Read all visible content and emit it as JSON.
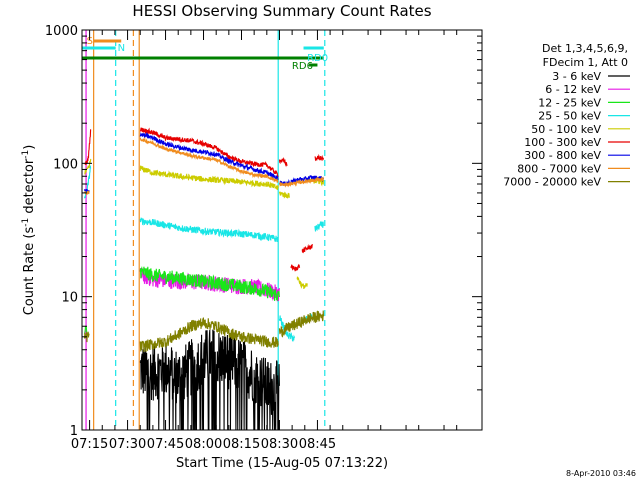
{
  "chart_data": {
    "type": "line",
    "title": "HESSI Observing Summary Count Rates",
    "xlabel": "Start Time (15-Aug-05 07:13:22)",
    "ylabel": "Count Rate (s",
    "ylabel_sup": "-1",
    "ylabel_tail": " detector",
    "ylabel_sup2": "-1",
    "ylabel_end": ")",
    "yscale": "log",
    "xlim_min": [
      432,
      590
    ],
    "ylim": [
      1,
      1000
    ],
    "x_ticks": [
      {
        "t": 435,
        "label": "07:15"
      },
      {
        "t": 450,
        "label": "07:30"
      },
      {
        "t": 465,
        "label": "07:45"
      },
      {
        "t": 480,
        "label": "08:00"
      },
      {
        "t": 495,
        "label": "08:15"
      },
      {
        "t": 510,
        "label": "08:30"
      },
      {
        "t": 525,
        "label": "08:45"
      }
    ],
    "y_ticks": [
      {
        "v": 1,
        "label": "1"
      },
      {
        "v": 10,
        "label": "10"
      },
      {
        "v": 100,
        "label": "100"
      },
      {
        "v": 1000,
        "label": "1000"
      }
    ],
    "legend": {
      "placement": "right",
      "header": [
        "Det 1,3,4,5,6,9,",
        "FDecim 1, Att 0"
      ],
      "entries": [
        {
          "label": "3 - 6 keV",
          "color": "#000000"
        },
        {
          "label": "6 - 12 keV",
          "color": "#e619e6"
        },
        {
          "label": "12 - 25 keV",
          "color": "#19e619"
        },
        {
          "label": "25 - 50 keV",
          "color": "#19e6e6"
        },
        {
          "label": "50 - 100 keV",
          "color": "#cccc00"
        },
        {
          "label": "100 - 300 keV",
          "color": "#e60000"
        },
        {
          "label": "300 - 800 keV",
          "color": "#0000e6"
        },
        {
          "label": "800 - 7000 keV",
          "color": "#f08c1e"
        },
        {
          "label": "7000 - 20000 keV",
          "color": "#808000"
        }
      ]
    },
    "flags": [
      {
        "label": "S",
        "start": 436.6,
        "end": 447.5,
        "color": "#f08c1e"
      },
      {
        "label": "N",
        "start": 432.0,
        "end": 445.3,
        "color": "#19e6e6"
      },
      {
        "label": "RD0",
        "start": 519.5,
        "end": 527.5,
        "color": "#19e6e6"
      },
      {
        "label": "RD6",
        "start": 432.0,
        "end": 527.5,
        "color": "#008000"
      },
      {
        "label": "",
        "start": 521.7,
        "end": 525.0,
        "color": "#008000"
      }
    ],
    "vlines": [
      {
        "t": 433.6,
        "color": "#e619e6",
        "style": "solid"
      },
      {
        "t": 436.6,
        "color": "#f08c1e",
        "style": "solid"
      },
      {
        "t": 445.3,
        "color": "#19e6e6",
        "style": "dashed"
      },
      {
        "t": 452.3,
        "color": "#f08c1e",
        "style": "dashed"
      },
      {
        "t": 454.6,
        "color": "#f08c1e",
        "style": "solid"
      },
      {
        "t": 509.5,
        "color": "#19e6e6",
        "style": "solid"
      },
      {
        "t": 527.9,
        "color": "#19e6e6",
        "style": "dashed"
      }
    ],
    "series": [
      {
        "name": "3 - 6 keV",
        "color": "#000000",
        "noise": 0.5,
        "segments": [
          [
            [
              455.0,
              2.8
            ],
            [
              460,
              2.7
            ],
            [
              465,
              2.9
            ],
            [
              470,
              2.5
            ],
            [
              475,
              2.9
            ],
            [
              480,
              3.5
            ],
            [
              485,
              3.6
            ],
            [
              490,
              3.3
            ],
            [
              495,
              3.0
            ],
            [
              500,
              2.6
            ],
            [
              505,
              2.1
            ],
            [
              510,
              2.0
            ]
          ]
        ]
      },
      {
        "name": "6 - 12 keV",
        "color": "#e619e6",
        "noise": 0.14,
        "segments": [
          [
            [
              455.0,
              14.5
            ],
            [
              460,
              13.5
            ],
            [
              470,
              13.0
            ],
            [
              480,
              12.8
            ],
            [
              490,
              12.2
            ],
            [
              500,
              11.8
            ],
            [
              505,
              11.2
            ],
            [
              510,
              10.5
            ]
          ]
        ]
      },
      {
        "name": "12 - 25 keV",
        "color": "#19e619",
        "noise": 0.12,
        "segments": [
          [
            [
              433.0,
              5.4
            ],
            [
              433.9,
              5.6
            ]
          ],
          [
            [
              455.0,
              15.5
            ],
            [
              460,
              14.5
            ],
            [
              470,
              13.8
            ],
            [
              480,
              13.0
            ],
            [
              490,
              12.3
            ],
            [
              500,
              11.5
            ],
            [
              505,
              11.0
            ],
            [
              510,
              10.0
            ]
          ]
        ]
      },
      {
        "name": "25 - 50 keV",
        "color": "#19e6e6",
        "noise": 0.06,
        "segments": [
          [
            [
              433.0,
              55
            ],
            [
              433.9,
              62
            ],
            [
              434.7,
              75
            ],
            [
              435.4,
              96
            ]
          ],
          [
            [
              455.0,
              37
            ],
            [
              460,
              36
            ],
            [
              470,
              33
            ],
            [
              480,
              31
            ],
            [
              490,
              30
            ],
            [
              500,
              29
            ],
            [
              505,
              28
            ],
            [
              509.5,
              27
            ]
          ],
          [
            [
              510.0,
              7.0
            ],
            [
              513,
              5.2
            ],
            [
              516,
              4.8
            ]
          ],
          [
            [
              519.0,
              6.5
            ],
            [
              521,
              6.8
            ],
            [
              523,
              7.2
            ]
          ],
          [
            [
              524.0,
              32
            ],
            [
              526,
              34
            ],
            [
              527.4,
              35
            ]
          ]
        ]
      },
      {
        "name": "50 - 100 keV",
        "color": "#cccc00",
        "noise": 0.05,
        "segments": [
          [
            [
              433.0,
              85
            ],
            [
              434,
              88
            ],
            [
              434.9,
              95
            ],
            [
              435.6,
              110
            ]
          ],
          [
            [
              455.0,
              92
            ],
            [
              460,
              85
            ],
            [
              470,
              80
            ],
            [
              480,
              76
            ],
            [
              490,
              74
            ],
            [
              500,
              71
            ],
            [
              505,
              70
            ],
            [
              509.5,
              65
            ]
          ],
          [
            [
              510.0,
              60
            ],
            [
              512,
              58
            ],
            [
              514,
              57
            ]
          ],
          [
            [
              517.0,
              14
            ],
            [
              519,
              12
            ],
            [
              521,
              12
            ]
          ],
          [
            [
              522.0,
              74
            ],
            [
              525,
              74
            ],
            [
              527.4,
              72
            ]
          ]
        ]
      },
      {
        "name": "100 - 300 keV",
        "color": "#e60000",
        "noise": 0.04,
        "segments": [
          [
            [
              433.0,
              98
            ],
            [
              433.9,
              102
            ],
            [
              434.5,
              110
            ],
            [
              435.4,
              175
            ]
          ],
          [
            [
              455.0,
              180
            ],
            [
              460,
              170
            ],
            [
              465,
              155
            ],
            [
              470,
              152
            ],
            [
              475,
              148
            ],
            [
              480,
              140
            ],
            [
              485,
              130
            ],
            [
              490,
              112
            ],
            [
              495,
              103
            ],
            [
              500,
              99
            ],
            [
              505,
              97
            ],
            [
              509.5,
              82
            ]
          ],
          [
            [
              510.0,
              105
            ],
            [
              512,
              104
            ],
            [
              513,
              96
            ]
          ],
          [
            [
              514.5,
              17
            ],
            [
              516,
              16
            ],
            [
              518,
              17
            ]
          ],
          [
            [
              519.0,
              22
            ],
            [
              521,
              23
            ],
            [
              523,
              24
            ]
          ],
          [
            [
              524.0,
              108
            ],
            [
              525.5,
              110
            ],
            [
              527.4,
              108
            ]
          ]
        ]
      },
      {
        "name": "300 - 800 keV",
        "color": "#0000e6",
        "noise": 0.04,
        "segments": [
          [
            [
              433.0,
              62
            ],
            [
              434,
              62
            ],
            [
              434.8,
              62
            ]
          ],
          [
            [
              455.0,
              165
            ],
            [
              460,
              155
            ],
            [
              465,
              140
            ],
            [
              470,
              132
            ],
            [
              475,
              126
            ],
            [
              480,
              122
            ],
            [
              485,
              117
            ],
            [
              490,
              104
            ],
            [
              495,
              96
            ],
            [
              500,
              90
            ],
            [
              505,
              85
            ],
            [
              509.5,
              77
            ]
          ],
          [
            [
              510.0,
              72
            ],
            [
              512,
              70
            ],
            [
              514,
              72
            ],
            [
              516,
              74
            ],
            [
              518,
              76
            ],
            [
              520,
              76
            ],
            [
              522,
              78
            ],
            [
              524,
              78
            ],
            [
              527.4,
              77
            ]
          ]
        ]
      },
      {
        "name": "800 - 7000 keV",
        "color": "#f08c1e",
        "noise": 0.03,
        "segments": [
          [
            [
              433.0,
              60
            ],
            [
              434,
              60
            ],
            [
              434.8,
              60
            ]
          ],
          [
            [
              455.0,
              152
            ],
            [
              460,
              142
            ],
            [
              465,
              128
            ],
            [
              470,
              122
            ],
            [
              475,
              114
            ],
            [
              480,
              110
            ],
            [
              485,
              106
            ],
            [
              490,
              95
            ],
            [
              495,
              87
            ],
            [
              500,
              82
            ],
            [
              505,
              80
            ],
            [
              509.5,
              73
            ]
          ],
          [
            [
              510.0,
              70
            ],
            [
              512,
              69
            ],
            [
              514,
              70
            ],
            [
              516,
              71
            ],
            [
              518,
              72
            ],
            [
              520,
              73
            ],
            [
              522,
              74
            ],
            [
              524,
              75
            ],
            [
              527.4,
              76
            ]
          ]
        ]
      },
      {
        "name": "7000 - 20000 keV",
        "color": "#808000",
        "noise": 0.1,
        "segments": [
          [
            [
              433.0,
              4.8
            ],
            [
              434,
              5.0
            ],
            [
              434.8,
              5.2
            ]
          ],
          [
            [
              455.0,
              4.2
            ],
            [
              460,
              4.4
            ],
            [
              465,
              4.6
            ],
            [
              470,
              5.2
            ],
            [
              475,
              6.0
            ],
            [
              480,
              6.4
            ],
            [
              485,
              6.0
            ],
            [
              490,
              5.4
            ],
            [
              495,
              5.0
            ],
            [
              500,
              4.8
            ],
            [
              505,
              4.6
            ],
            [
              509.5,
              4.5
            ]
          ],
          [
            [
              510.0,
              5.4
            ],
            [
              514,
              5.9
            ],
            [
              518,
              6.4
            ],
            [
              522,
              6.9
            ],
            [
              527.4,
              7.2
            ]
          ]
        ]
      }
    ]
  },
  "footer": {
    "date": "8-Apr-2010 03:46"
  }
}
